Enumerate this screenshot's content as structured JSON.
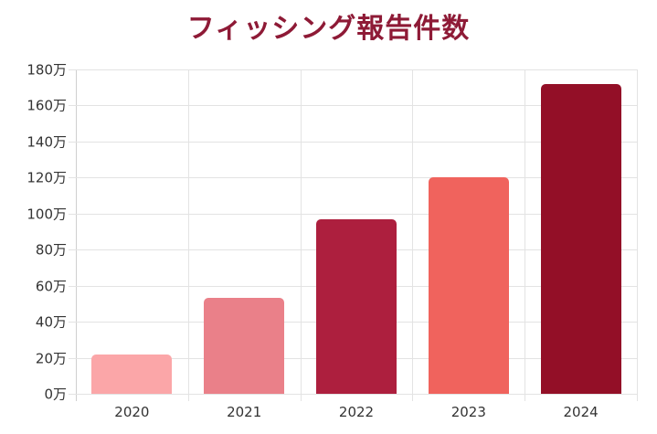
{
  "title": "フィッシング報告件数",
  "chart_data": {
    "type": "bar",
    "title": "フィッシング報告件数",
    "xlabel": "",
    "ylabel": "",
    "categories": [
      "2020",
      "2021",
      "2022",
      "2023",
      "2024"
    ],
    "values": [
      22,
      53,
      97,
      120,
      172
    ],
    "unit": "万",
    "ylim": [
      0,
      180
    ],
    "yticks": [
      "0万",
      "20万",
      "40万",
      "60万",
      "80万",
      "100万",
      "120万",
      "140万",
      "160万",
      "180万"
    ],
    "grid": true,
    "legend": null,
    "colors": [
      "#fba6a8",
      "#ea8089",
      "#ad1f3e",
      "#f0635d",
      "#930f27"
    ]
  }
}
